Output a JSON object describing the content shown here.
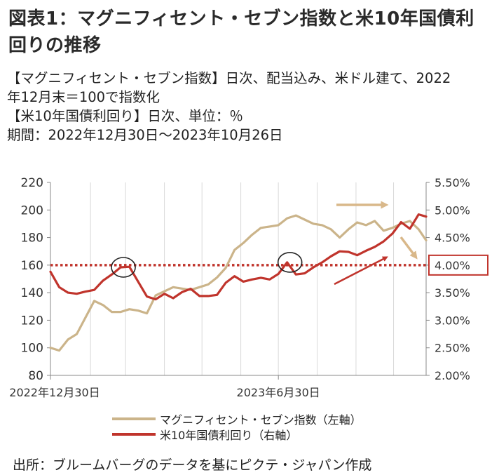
{
  "title": "図表1：マグニフィセント・セブン指数と米10年国債利回りの推移",
  "description": [
    "【マグニフィセント・セブン指数】日次、配当込み、米ドル建て、2022",
    "年12月末＝100で指数化",
    "【米10年国債利回り】日次、単位：％",
    "期間：2022年12月30日～2023年10月26日"
  ],
  "source": "出所：ブルームバーグのデータを基にピクテ・ジャパン作成",
  "colors": {
    "index": "#cbb48a",
    "yield": "#c0342c",
    "grid": "#d9d9d9",
    "arrow": "#d9b88a"
  },
  "chart_data": {
    "type": "line",
    "x_tick_labels": [
      "2022年12月30日",
      "2023年6月30日"
    ],
    "x": [
      "2022-12-30",
      "2023-01-06",
      "2023-01-13",
      "2023-01-20",
      "2023-01-27",
      "2023-02-03",
      "2023-02-10",
      "2023-02-17",
      "2023-02-24",
      "2023-03-03",
      "2023-03-10",
      "2023-03-17",
      "2023-03-24",
      "2023-03-31",
      "2023-04-07",
      "2023-04-14",
      "2023-04-21",
      "2023-04-28",
      "2023-05-05",
      "2023-05-12",
      "2023-05-19",
      "2023-05-26",
      "2023-06-02",
      "2023-06-09",
      "2023-06-16",
      "2023-06-23",
      "2023-06-30",
      "2023-07-07",
      "2023-07-14",
      "2023-07-21",
      "2023-07-28",
      "2023-08-04",
      "2023-08-11",
      "2023-08-18",
      "2023-08-25",
      "2023-09-01",
      "2023-09-08",
      "2023-09-15",
      "2023-09-22",
      "2023-09-29",
      "2023-10-06",
      "2023-10-13",
      "2023-10-20",
      "2023-10-26"
    ],
    "left_axis": {
      "ylim": [
        80,
        220
      ],
      "ticks": [
        "80",
        "100",
        "120",
        "140",
        "160",
        "180",
        "200",
        "220"
      ]
    },
    "right_axis": {
      "ylim": [
        2.0,
        5.5
      ],
      "ticks": [
        "2.00%",
        "2.50%",
        "3.00%",
        "3.50%",
        "4.00%",
        "4.50%",
        "5.00%",
        "5.50%"
      ]
    },
    "series": [
      {
        "name": "マグニフィセント・セブン指数（左軸）",
        "axis": "left",
        "values": [
          100,
          98,
          106,
          110,
          122,
          134,
          131,
          126,
          126,
          128,
          127,
          125,
          138,
          141,
          144,
          143,
          142,
          144,
          146,
          151,
          158,
          171,
          176,
          182,
          187,
          188,
          189,
          194,
          196,
          193,
          190,
          189,
          186,
          180,
          186,
          191,
          189,
          192,
          185,
          187,
          190,
          192,
          186,
          178
        ]
      },
      {
        "name": "米10年国債利回り（右軸）",
        "axis": "right",
        "values": [
          3.88,
          3.6,
          3.5,
          3.48,
          3.52,
          3.55,
          3.72,
          3.83,
          3.96,
          3.97,
          3.7,
          3.43,
          3.38,
          3.48,
          3.4,
          3.51,
          3.57,
          3.44,
          3.44,
          3.46,
          3.68,
          3.8,
          3.7,
          3.74,
          3.77,
          3.74,
          3.84,
          4.05,
          3.83,
          3.85,
          3.96,
          4.05,
          4.16,
          4.25,
          4.24,
          4.18,
          4.26,
          4.33,
          4.43,
          4.57,
          4.78,
          4.66,
          4.92,
          4.88
        ]
      }
    ],
    "reference_line": {
      "axis": "right",
      "value": 4.0,
      "label": "4.00%",
      "style": "dotted"
    },
    "annotations": [
      "circle-around-early-2023-peak",
      "circle-around-late-june-peak",
      "arrow-right-index",
      "arrow-down-index",
      "arrow-up-yield"
    ],
    "grid": "vertical-only",
    "legend_placement": "bottom"
  }
}
